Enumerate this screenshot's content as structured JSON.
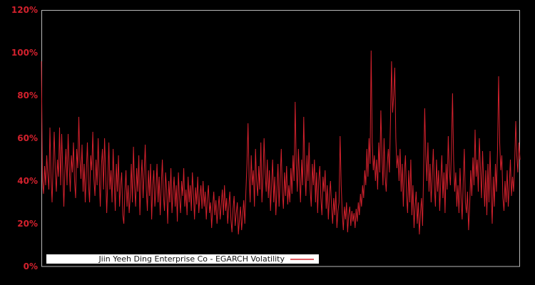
{
  "chart_data": {
    "type": "line",
    "title": "",
    "xlabel": "",
    "ylabel": "",
    "ylim": [
      0,
      120
    ],
    "grid": false,
    "background_color": "#000000",
    "plot_border_color": "#b9b9b9",
    "tick_label_color": "#d3212d",
    "legend": {
      "label": "Jiin Yeeh Ding Enterprise Co - EGARCH Volatility",
      "position": "bottom-inside",
      "background": "#ffffff",
      "sample_line_color": "#e0595f"
    },
    "yticks": [
      {
        "label": "120%",
        "value": 120
      },
      {
        "label": "100%",
        "value": 100
      },
      {
        "label": "80%",
        "value": 80
      },
      {
        "label": "60%",
        "value": 60
      },
      {
        "label": "40%",
        "value": 40
      },
      {
        "label": "20%",
        "value": 20
      },
      {
        "label": "0%",
        "value": 0
      }
    ],
    "series": [
      {
        "name": "Jiin Yeeh Ding Enterprise Co - EGARCH Volatility",
        "color": "#d3212d",
        "unit": "%",
        "values": [
          96,
          40,
          34,
          47,
          38,
          52,
          43,
          36,
          65,
          42,
          30,
          48,
          63,
          44,
          35,
          50,
          42,
          65,
          38,
          62,
          45,
          28,
          45,
          55,
          38,
          62,
          47,
          35,
          52,
          44,
          58,
          40,
          32,
          55,
          46,
          70,
          50,
          41,
          57,
          35,
          48,
          30,
          44,
          58,
          39,
          30,
          52,
          45,
          63,
          41,
          33,
          50,
          38,
          60,
          42,
          28,
          47,
          55,
          36,
          60,
          44,
          25,
          40,
          58,
          36,
          45,
          30,
          55,
          40,
          26,
          48,
          35,
          52,
          28,
          38,
          44,
          24,
          20,
          35,
          45,
          28,
          38,
          25,
          33,
          48,
          30,
          56,
          38,
          28,
          46,
          35,
          52,
          24,
          40,
          50,
          32,
          44,
          57,
          36,
          26,
          45,
          33,
          48,
          22,
          38,
          45,
          28,
          36,
          48,
          30,
          42,
          24,
          38,
          50,
          33,
          26,
          44,
          36,
          20,
          40,
          30,
          46,
          25,
          35,
          42,
          28,
          38,
          21,
          44,
          32,
          25,
          40,
          33,
          46,
          28,
          36,
          24,
          42,
          30,
          38,
          26,
          44,
          34,
          22,
          37,
          29,
          42,
          25,
          33,
          38,
          27,
          40,
          28,
          35,
          22,
          32,
          38,
          25,
          30,
          18,
          28,
          35,
          24,
          31,
          20,
          27,
          33,
          22,
          29,
          36,
          24,
          38,
          26,
          32,
          20,
          28,
          35,
          22,
          16,
          27,
          33,
          19,
          25,
          30,
          15,
          22,
          28,
          17,
          24,
          31,
          20,
          35,
          48,
          67,
          42,
          30,
          52,
          38,
          45,
          28,
          55,
          40,
          33,
          47,
          36,
          58,
          30,
          42,
          60,
          44,
          35,
          50,
          32,
          45,
          26,
          38,
          50,
          30,
          42,
          24,
          36,
          48,
          28,
          40,
          55,
          35,
          27,
          44,
          33,
          47,
          29,
          38,
          30,
          46,
          34,
          52,
          40,
          77,
          48,
          35,
          55,
          42,
          30,
          50,
          38,
          70,
          45,
          33,
          52,
          40,
          58,
          36,
          28,
          48,
          38,
          50,
          30,
          44,
          25,
          40,
          47,
          32,
          24,
          42,
          35,
          45,
          27,
          38,
          22,
          33,
          40,
          28,
          20,
          32,
          24,
          35,
          18,
          26,
          30,
          61,
          38,
          25,
          17,
          28,
          22,
          30,
          16,
          24,
          28,
          19,
          26,
          21,
          25,
          18,
          27,
          21,
          30,
          24,
          34,
          28,
          38,
          32,
          45,
          38,
          55,
          42,
          60,
          48,
          101,
          58,
          45,
          52,
          40,
          50,
          36,
          58,
          44,
          73,
          52,
          38,
          60,
          42,
          35,
          48,
          55,
          44,
          68,
          96,
          72,
          80,
          93,
          60,
          46,
          52,
          40,
          55,
          35,
          48,
          28,
          44,
          52,
          33,
          25,
          45,
          30,
          50,
          24,
          38,
          18,
          28,
          35,
          20,
          30,
          15,
          25,
          32,
          19,
          45,
          74,
          52,
          40,
          58,
          35,
          48,
          30,
          42,
          55,
          38,
          28,
          50,
          35,
          45,
          26,
          40,
          52,
          32,
          44,
          25,
          48,
          36,
          61,
          45,
          38,
          55,
          81,
          50,
          35,
          44,
          28,
          38,
          25,
          46,
          32,
          22,
          40,
          55,
          30,
          25,
          35,
          17,
          28,
          45,
          33,
          51,
          38,
          64,
          42,
          50,
          35,
          60,
          46,
          32,
          54,
          40,
          28,
          45,
          24,
          48,
          30,
          54,
          35,
          20,
          42,
          28,
          48,
          35,
          55,
          89,
          58,
          45,
          52,
          32,
          26,
          40,
          30,
          45,
          28,
          38,
          50,
          33,
          42,
          35,
          48,
          68,
          52,
          44,
          58,
          50
        ]
      }
    ]
  }
}
